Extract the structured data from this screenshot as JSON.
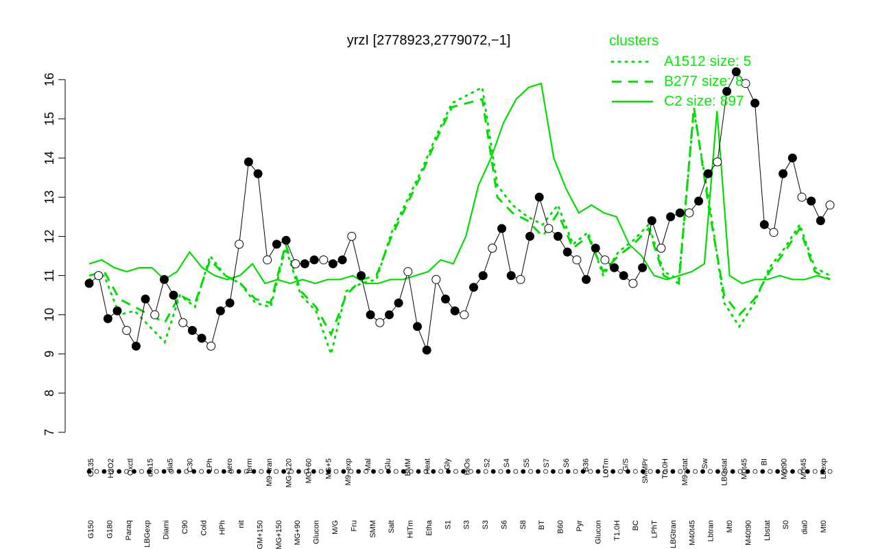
{
  "chart_data": {
    "type": "line",
    "title": "yrzI [2778923,2779072,−1]",
    "xlabel": "",
    "ylabel": "",
    "ylim": [
      7,
      16.3
    ],
    "yticks": [
      7,
      8,
      9,
      10,
      11,
      12,
      13,
      14,
      15,
      16
    ],
    "grid": false,
    "colors": {
      "cluster_line": "#00dd00",
      "legend_text": "#00ee00",
      "points_dark": "#000000",
      "points_light": "#ffffff"
    },
    "legend": {
      "title": "clusters",
      "position": "top-right",
      "entries": [
        {
          "label": "A1512 size: 5",
          "style": "dotted"
        },
        {
          "label": "B277 size: 8",
          "style": "dashed"
        },
        {
          "label": "C2 size: 897",
          "style": "solid"
        }
      ]
    },
    "category_labels_top": [
      "G135",
      "H2O2",
      "Oxctl",
      "dia15",
      "dia5",
      "C30",
      "LPh",
      "aero",
      "ferm",
      "M9−tran",
      "MG+120",
      "MG+60",
      "MG+5",
      "M9−exp",
      "Mal",
      "Glu",
      "BMM",
      "Heat",
      "Gly",
      "HiOs",
      "S2",
      "S4",
      "S5",
      "S7",
      "S6",
      "B36",
      "LoTm",
      "G/S",
      "SMMPr",
      "T0.0H",
      "M9−stat",
      "Sw",
      "LBGstat",
      "M0t45",
      "BI",
      "M0t90",
      "M0t45",
      "Lbexp"
    ],
    "category_labels_bottom": [
      "G150",
      "G180",
      "Paraq",
      "LBGexp",
      "Diami",
      "C90",
      "Cold",
      "HPh",
      "nit",
      "GM+150",
      "MG+150",
      "MG+90",
      "Glucon",
      "M/G",
      "Fru",
      "SMM",
      "Salt",
      "HiTm",
      "Etha",
      "S1",
      "S3",
      "S3",
      "S6",
      "S8",
      "BT",
      "B60",
      "Pyr",
      "Glucon",
      "T1.0H",
      "BC",
      "LPhT",
      "LBGtran",
      "M40t45",
      "Lbtran",
      "Mt0",
      "M40t90",
      "Lbstat",
      "S0",
      "dia0",
      "Mt0"
    ],
    "series": [
      {
        "name": "observations",
        "style": "points",
        "x": [
          1,
          2,
          3,
          4,
          5,
          6,
          7,
          8,
          9,
          10,
          11,
          12,
          13,
          14,
          15,
          16,
          17,
          18,
          19,
          20,
          21,
          22,
          23,
          24,
          25,
          26,
          27,
          28,
          29,
          30,
          31,
          32,
          33,
          34,
          35,
          36,
          37,
          38,
          39,
          40,
          41,
          42,
          43,
          44,
          45,
          46,
          47,
          48,
          49,
          50,
          51,
          52,
          53,
          54,
          55,
          56,
          57,
          58,
          59,
          60,
          61,
          62,
          63,
          64,
          65,
          66,
          67,
          68,
          69,
          70,
          71,
          72,
          73,
          74,
          75,
          76,
          77,
          78,
          79,
          80
        ],
        "y": [
          10.8,
          11.0,
          9.9,
          10.1,
          9.6,
          9.2,
          10.4,
          10.0,
          10.9,
          10.5,
          9.8,
          9.6,
          9.4,
          9.2,
          10.1,
          10.3,
          11.8,
          13.9,
          13.6,
          11.4,
          11.8,
          11.9,
          11.3,
          11.3,
          11.4,
          11.4,
          11.3,
          11.4,
          12.0,
          11.0,
          10.0,
          9.8,
          10.0,
          10.3,
          11.1,
          9.7,
          9.1,
          10.9,
          10.4,
          10.1,
          10.0,
          10.7,
          11.0,
          11.7,
          12.2,
          11.0,
          10.9,
          12.0,
          13.0,
          12.2,
          12.0,
          11.6,
          11.4,
          10.9,
          11.7,
          11.4,
          11.2,
          11.0,
          10.8,
          11.2,
          12.4,
          11.7,
          12.5,
          12.6,
          12.6,
          12.9,
          13.6,
          13.9,
          15.7,
          16.2,
          15.9,
          15.4,
          12.3,
          12.1,
          13.6,
          14.0,
          13.0,
          12.9,
          12.4,
          12.8
        ],
        "style_note": ""
      }
    ],
    "cluster_lines": [
      {
        "name": "C2 size: 897",
        "style": "solid",
        "y": [
          11.3,
          11.4,
          11.2,
          11.1,
          11.2,
          11.2,
          10.9,
          11.1,
          11.6,
          11.2,
          11.0,
          10.9,
          11.0,
          11.3,
          10.8,
          10.9,
          10.8,
          10.9,
          10.8,
          10.9,
          10.9,
          11.0,
          10.8,
          10.8,
          10.9,
          10.9,
          11.0,
          11.1,
          11.4,
          11.3,
          12.0,
          13.3,
          14.0,
          14.9,
          15.5,
          15.8,
          15.9,
          14.0,
          13.2,
          12.6,
          12.8,
          12.6,
          12.5,
          11.8,
          11.5,
          11.0,
          10.9,
          11.0,
          11.1,
          11.3,
          15.2,
          11.0,
          10.8,
          10.9,
          10.9,
          11.0,
          10.9,
          10.9,
          11.0,
          10.9
        ]
      },
      {
        "name": "B277 size: 8",
        "style": "dashed",
        "y": [
          11.0,
          11.1,
          10.4,
          10.2,
          10.0,
          9.8,
          10.5,
          10.3,
          11.4,
          11.0,
          10.8,
          10.4,
          10.3,
          11.8,
          10.6,
          10.2,
          9.5,
          10.5,
          10.9,
          11.0,
          12.0,
          12.8,
          13.6,
          14.5,
          15.3,
          15.4,
          15.5,
          13.0,
          12.6,
          12.4,
          12.0,
          12.6,
          11.7,
          12.0,
          11.1,
          11.5,
          11.8,
          12.2,
          11.0,
          10.8,
          15.3,
          12.7,
          10.5,
          10.0,
          10.4,
          11.1,
          11.6,
          12.2,
          11.1,
          10.9
        ]
      },
      {
        "name": "A1512 size: 5",
        "style": "dotted",
        "y": [
          10.9,
          11.0,
          10.0,
          10.1,
          9.7,
          9.3,
          10.5,
          10.2,
          11.5,
          11.0,
          10.8,
          10.3,
          10.2,
          11.7,
          10.5,
          10.1,
          9.0,
          10.6,
          10.8,
          10.9,
          12.1,
          12.9,
          13.7,
          14.6,
          15.4,
          15.6,
          15.8,
          13.3,
          12.8,
          12.5,
          12.3,
          12.8,
          11.8,
          12.1,
          11.0,
          11.6,
          11.9,
          12.3,
          11.1,
          10.9,
          15.2,
          12.9,
          10.3,
          9.7,
          10.3,
          11.2,
          11.7,
          12.3,
          11.2,
          11.0
        ]
      }
    ]
  }
}
